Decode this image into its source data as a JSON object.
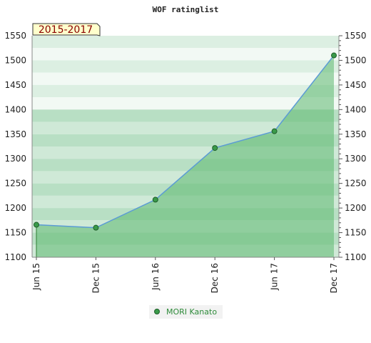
{
  "chart_data": {
    "type": "area",
    "title": "WOF ratinglist",
    "range_label": "2015-2017",
    "categories": [
      "Jun 15",
      "Dec 15",
      "Jun 16",
      "Dec 16",
      "Jun 17",
      "Dec 17"
    ],
    "series": [
      {
        "name": "MORI Kanato",
        "x": [
          0,
          1,
          2,
          3,
          4,
          5
        ],
        "values": [
          1166,
          1160,
          1217,
          1322,
          1356,
          1510
        ]
      }
    ],
    "ylim": [
      1100,
      1550
    ],
    "yticks": [
      1100,
      1150,
      1200,
      1250,
      1300,
      1350,
      1400,
      1450,
      1500,
      1550
    ],
    "xlabel": "",
    "ylabel": "",
    "grid": true,
    "legend": "bottom-center",
    "colors": {
      "line": "#5b9bd5",
      "fill": "#5cb870",
      "marker": "#3a9a4a",
      "band_dark": "#b3dcc0",
      "band_light": "#eef7f1",
      "range_box": "#ffffcc"
    }
  }
}
